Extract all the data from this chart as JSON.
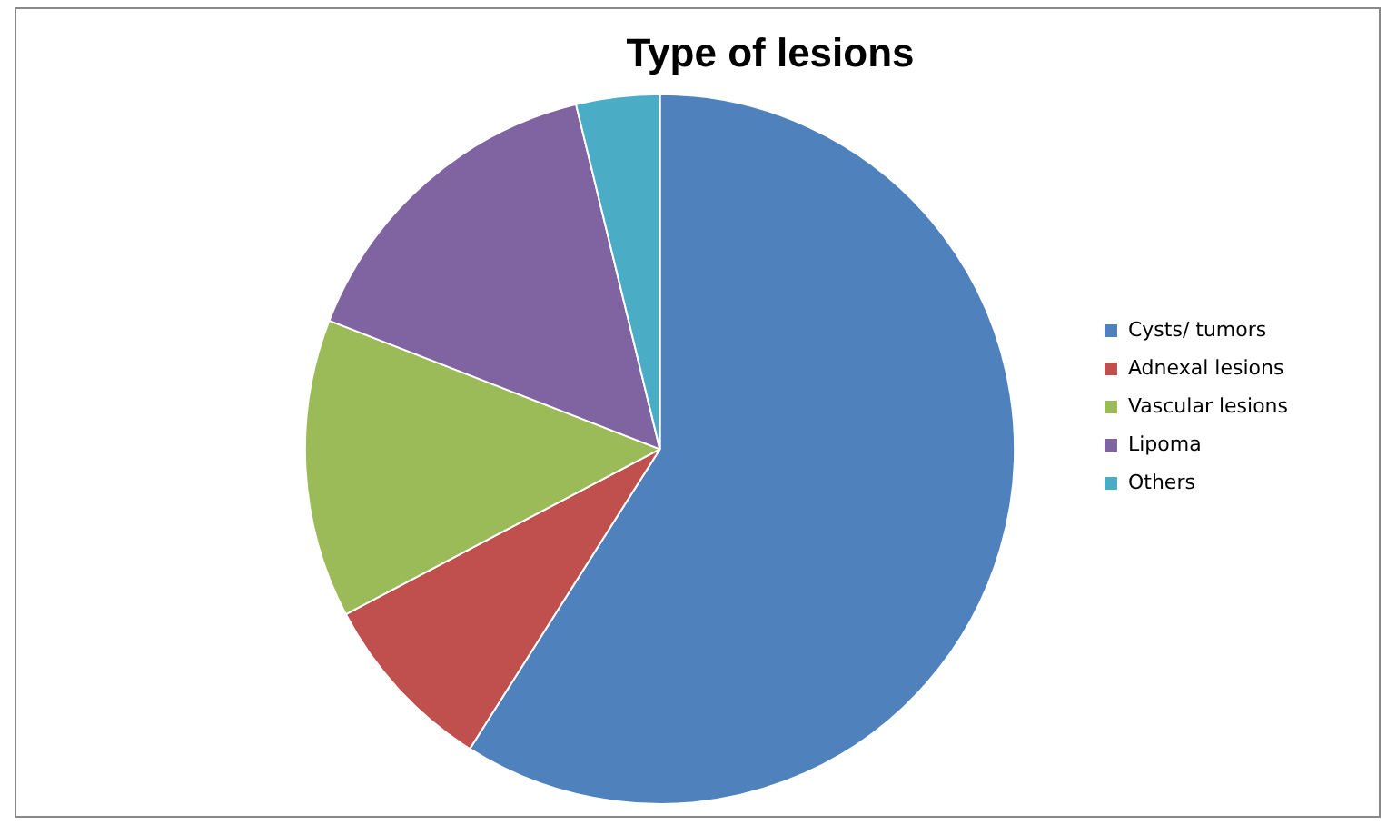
{
  "chart_data": {
    "type": "pie",
    "title": "Type of lesions",
    "categories": [
      "Cysts/ tumors",
      "Adnexal lesions",
      "Vascular lesions",
      "Lipoma",
      "Others"
    ],
    "values": [
      59,
      8.3,
      13.6,
      15.3,
      3.8
    ],
    "colors": [
      "#4f81bd",
      "#c0504d",
      "#9bbb59",
      "#8064a2",
      "#4bacc6"
    ],
    "legend": "right"
  }
}
